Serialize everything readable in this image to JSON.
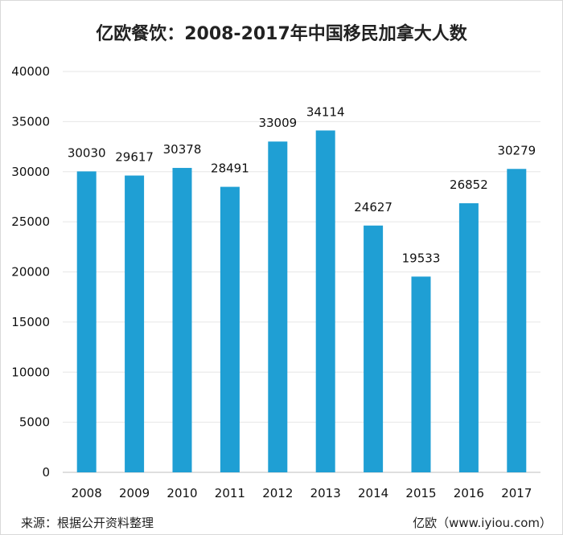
{
  "title": "亿欧餐饮：2008-2017年中国移民加拿大人数",
  "footer": {
    "source": "来源：根据公开资料整理",
    "brand": "亿欧（www.iyiou.com）"
  },
  "colors": {
    "bar": "#1f9fd4",
    "grid": "#e6e6e6",
    "axis": "#bfbfbf"
  },
  "chart_data": {
    "type": "bar",
    "categories": [
      "2008",
      "2009",
      "2010",
      "2011",
      "2012",
      "2013",
      "2014",
      "2015",
      "2016",
      "2017"
    ],
    "values": [
      30030,
      29617,
      30378,
      28491,
      33009,
      34114,
      24627,
      19533,
      26852,
      30279
    ],
    "ylim": [
      0,
      40000
    ],
    "yticks": [
      0,
      5000,
      10000,
      15000,
      20000,
      25000,
      30000,
      35000,
      40000
    ],
    "grid": true,
    "data_labels": true
  }
}
